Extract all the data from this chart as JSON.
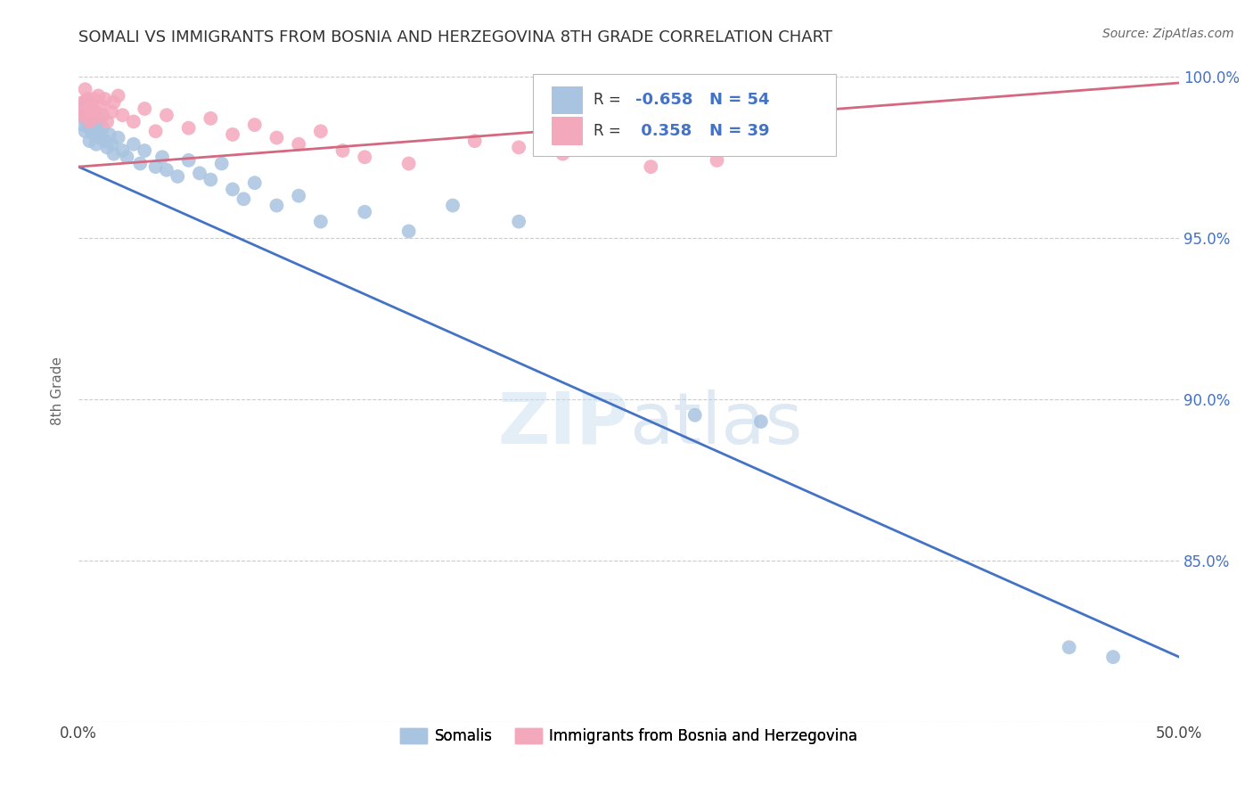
{
  "title": "SOMALI VS IMMIGRANTS FROM BOSNIA AND HERZEGOVINA 8TH GRADE CORRELATION CHART",
  "source": "Source: ZipAtlas.com",
  "ylabel": "8th Grade",
  "xlim": [
    0.0,
    0.5
  ],
  "ylim": [
    0.8,
    1.005
  ],
  "xticks": [
    0.0,
    0.1,
    0.2,
    0.3,
    0.4,
    0.5
  ],
  "xticklabels": [
    "0.0%",
    "",
    "",
    "",
    "",
    "50.0%"
  ],
  "yticks": [
    0.8,
    0.85,
    0.9,
    0.95,
    1.0
  ],
  "yticklabels": [
    "",
    "85.0%",
    "90.0%",
    "95.0%",
    "100.0%"
  ],
  "legend_labels": [
    "Somalis",
    "Immigrants from Bosnia and Herzegovina"
  ],
  "r_somali": "-0.658",
  "n_somali": "54",
  "r_bosnia": "0.358",
  "n_bosnia": "39",
  "somali_color": "#a8c4e0",
  "bosnia_color": "#f4a8bc",
  "somali_line_color": "#4472c4",
  "bosnia_line_color": "#d46880",
  "watermark_zip": "ZIP",
  "watermark_atlas": "atlas",
  "background_color": "#ffffff",
  "grid_color": "#cccccc",
  "somali_scatter_x": [
    0.001,
    0.002,
    0.002,
    0.003,
    0.003,
    0.003,
    0.004,
    0.004,
    0.005,
    0.005,
    0.005,
    0.006,
    0.006,
    0.007,
    0.007,
    0.008,
    0.008,
    0.009,
    0.01,
    0.01,
    0.011,
    0.012,
    0.013,
    0.014,
    0.015,
    0.016,
    0.018,
    0.02,
    0.022,
    0.025,
    0.028,
    0.03,
    0.035,
    0.038,
    0.04,
    0.045,
    0.05,
    0.055,
    0.06,
    0.065,
    0.07,
    0.075,
    0.08,
    0.09,
    0.1,
    0.11,
    0.13,
    0.15,
    0.17,
    0.2,
    0.28,
    0.31,
    0.45,
    0.47
  ],
  "somali_scatter_y": [
    0.99,
    0.988,
    0.985,
    0.992,
    0.987,
    0.983,
    0.99,
    0.986,
    0.989,
    0.984,
    0.98,
    0.988,
    0.983,
    0.986,
    0.982,
    0.985,
    0.979,
    0.983,
    0.987,
    0.981,
    0.984,
    0.98,
    0.978,
    0.982,
    0.979,
    0.976,
    0.981,
    0.977,
    0.975,
    0.979,
    0.973,
    0.977,
    0.972,
    0.975,
    0.971,
    0.969,
    0.974,
    0.97,
    0.968,
    0.973,
    0.965,
    0.962,
    0.967,
    0.96,
    0.963,
    0.955,
    0.958,
    0.952,
    0.96,
    0.955,
    0.895,
    0.893,
    0.823,
    0.82
  ],
  "bosnia_scatter_x": [
    0.001,
    0.002,
    0.003,
    0.003,
    0.004,
    0.005,
    0.005,
    0.006,
    0.007,
    0.007,
    0.008,
    0.009,
    0.01,
    0.011,
    0.012,
    0.013,
    0.015,
    0.016,
    0.018,
    0.02,
    0.025,
    0.03,
    0.035,
    0.04,
    0.05,
    0.06,
    0.07,
    0.08,
    0.09,
    0.1,
    0.11,
    0.12,
    0.13,
    0.15,
    0.18,
    0.2,
    0.22,
    0.26,
    0.29
  ],
  "bosnia_scatter_y": [
    0.988,
    0.992,
    0.996,
    0.989,
    0.993,
    0.99,
    0.986,
    0.991,
    0.993,
    0.987,
    0.989,
    0.994,
    0.991,
    0.988,
    0.993,
    0.986,
    0.989,
    0.992,
    0.994,
    0.988,
    0.986,
    0.99,
    0.983,
    0.988,
    0.984,
    0.987,
    0.982,
    0.985,
    0.981,
    0.979,
    0.983,
    0.977,
    0.975,
    0.973,
    0.98,
    0.978,
    0.976,
    0.972,
    0.974
  ],
  "somali_line_x0": 0.0,
  "somali_line_y0": 0.972,
  "somali_line_x1": 0.5,
  "somali_line_y1": 0.82,
  "bosnia_line_x0": 0.0,
  "bosnia_line_y0": 0.972,
  "bosnia_line_x1": 0.5,
  "bosnia_line_y1": 0.998
}
